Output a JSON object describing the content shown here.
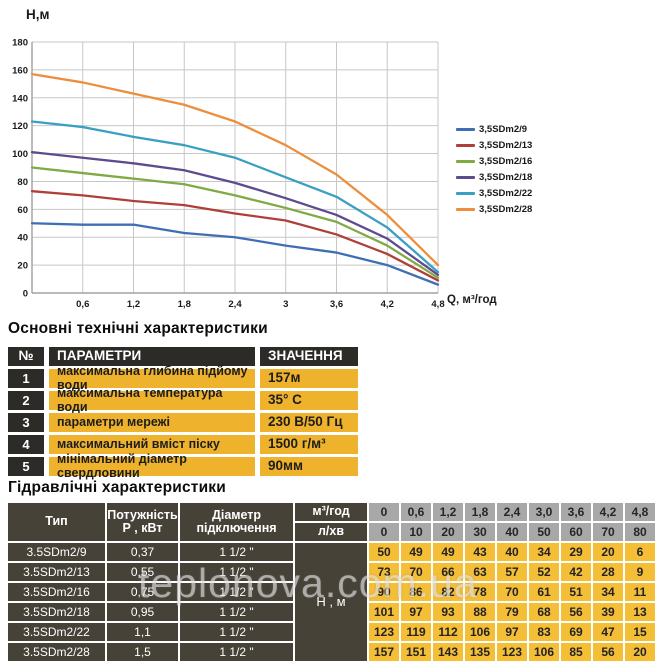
{
  "page": {
    "watermark": "teplonova.com.ua"
  },
  "chart_data": {
    "type": "line",
    "title": "",
    "y_axis_label": "Н,м",
    "x_axis_label": "Q, м³/год",
    "x": [
      0,
      0.6,
      1.2,
      1.8,
      2.4,
      3.0,
      3.6,
      4.2,
      4.8
    ],
    "x_tick_labels": [
      "0,6",
      "1,2",
      "1,8",
      "2,4",
      "3",
      "3,6",
      "4,2",
      "4,8"
    ],
    "xlim": [
      0,
      4.8
    ],
    "ylim": [
      0,
      180
    ],
    "ytick_step": 20,
    "grid": true,
    "legend_position": "right",
    "series": [
      {
        "name": "3,5SDm2/9",
        "color": "#3E6FB5",
        "values": [
          50,
          49,
          49,
          43,
          40,
          34,
          29,
          20,
          6
        ]
      },
      {
        "name": "3,5SDm2/13",
        "color": "#AF3F38",
        "values": [
          73,
          70,
          66,
          63,
          57,
          52,
          42,
          28,
          9
        ]
      },
      {
        "name": "3,5SDm2/16",
        "color": "#7FAA44",
        "values": [
          90,
          86,
          82,
          78,
          70,
          61,
          51,
          34,
          11
        ]
      },
      {
        "name": "3,5SDm2/18",
        "color": "#5E4B8E",
        "values": [
          101,
          97,
          93,
          88,
          79,
          68,
          56,
          39,
          13
        ]
      },
      {
        "name": "3,5SDm2/22",
        "color": "#3A9FC2",
        "values": [
          123,
          119,
          112,
          106,
          97,
          83,
          69,
          47,
          15
        ]
      },
      {
        "name": "3,5SDm2/28",
        "color": "#EC8F3D",
        "values": [
          157,
          151,
          143,
          135,
          123,
          106,
          85,
          56,
          20
        ]
      }
    ],
    "colors": {
      "gridline": "#c7c7c7",
      "axis": "#8f8f8f",
      "tick_text": "#1a1a1a"
    }
  },
  "specs_table": {
    "title": "Основні технічні характеристики",
    "headers": [
      "№",
      "ПАРАМЕТРИ",
      "ЗНАЧЕННЯ"
    ],
    "rows": [
      {
        "num": "1",
        "param": "максимальна глибина підйому води",
        "value": "157м"
      },
      {
        "num": "2",
        "param": "максимальна температура води",
        "value": "35° С"
      },
      {
        "num": "3",
        "param": "параметри мережі",
        "value": "230 В/50 Гц"
      },
      {
        "num": "4",
        "param": "максимальний вміст піску",
        "value": "1500 г/м³"
      },
      {
        "num": "5",
        "param": "мінімальний діаметр свердловини",
        "value": "90мм"
      }
    ]
  },
  "hydraulics_table": {
    "title": "Гідравлічні характеристики",
    "col_headers": {
      "type": "Тип",
      "power_line1": "Потужність",
      "power_line2": "Р , кВт",
      "diameter_line1": "Діаметр",
      "diameter_line2": "підключення",
      "flow_m3": "м³/год",
      "flow_lmin": "л/хв",
      "head_label": "Н , м"
    },
    "flow_m3_values": [
      "0",
      "0,6",
      "1,2",
      "1,8",
      "2,4",
      "3,0",
      "3,6",
      "4,2",
      "4,8"
    ],
    "flow_lmin_values": [
      "0",
      "10",
      "20",
      "30",
      "40",
      "50",
      "60",
      "70",
      "80"
    ],
    "rows": [
      {
        "type": "3.5SDm2/9",
        "power": "0,37",
        "diameter": "1 1/2 \"",
        "heads": [
          50,
          49,
          49,
          43,
          40,
          34,
          29,
          20,
          6
        ]
      },
      {
        "type": "3.5SDm2/13",
        "power": "0,55",
        "diameter": "1 1/2 \"",
        "heads": [
          73,
          70,
          66,
          63,
          57,
          52,
          42,
          28,
          9
        ]
      },
      {
        "type": "3.5SDm2/16",
        "power": "0,75",
        "diameter": "1 1/2 \"",
        "heads": [
          90,
          86,
          82,
          78,
          70,
          61,
          51,
          34,
          11
        ]
      },
      {
        "type": "3.5SDm2/18",
        "power": "0,95",
        "diameter": "1 1/2 \"",
        "heads": [
          101,
          97,
          93,
          88,
          79,
          68,
          56,
          39,
          13
        ]
      },
      {
        "type": "3.5SDm2/22",
        "power": "1,1",
        "diameter": "1 1/2 \"",
        "heads": [
          123,
          119,
          112,
          106,
          97,
          83,
          69,
          47,
          15
        ]
      },
      {
        "type": "3.5SDm2/28",
        "power": "1,5",
        "diameter": "1 1/2 \"",
        "heads": [
          157,
          151,
          143,
          135,
          123,
          106,
          85,
          56,
          20
        ]
      }
    ]
  }
}
